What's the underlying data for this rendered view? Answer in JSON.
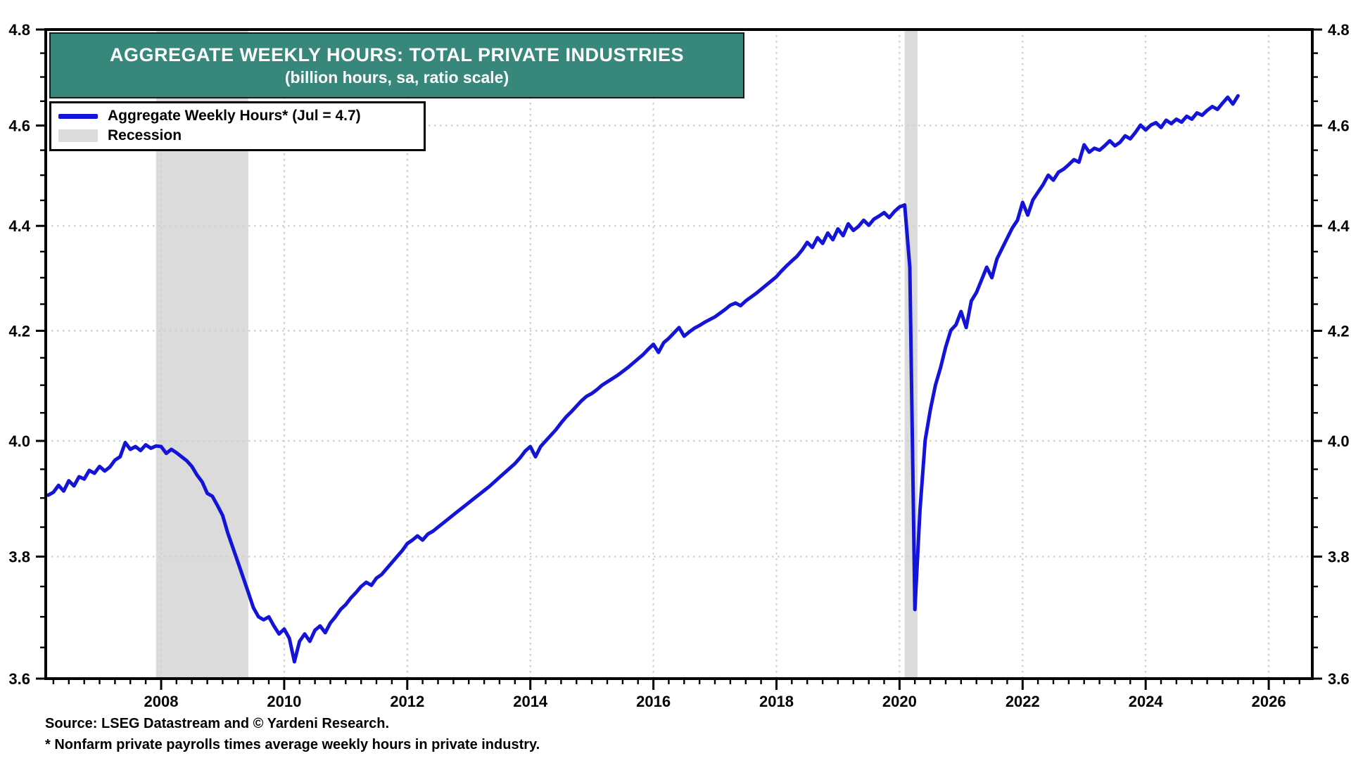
{
  "colors": {
    "line": "#1414d8",
    "recession": "#dbdbdb",
    "title_bg": "#38877b",
    "title_text": "#ffffff",
    "grid": "#cfcfcf",
    "axis": "#000000"
  },
  "chart_data": {
    "type": "line",
    "title": "AGGREGATE WEEKLY HOURS: TOTAL PRIVATE INDUSTRIES",
    "subtitle": "(billion hours, sa, ratio scale)",
    "legend": [
      {
        "label": "Aggregate Weekly Hours* (Jul = 4.7)",
        "swatch": "line",
        "color": "#1414d8"
      },
      {
        "label": "Recession",
        "swatch": "box",
        "color": "#dbdbdb"
      }
    ],
    "legend_position": "top-left",
    "grid": true,
    "y_axis": {
      "scale": "log-ratio",
      "min": 3.6,
      "max": 4.8,
      "major_ticks": [
        4.8,
        4.6,
        4.4,
        4.2,
        4.0,
        3.8,
        3.6
      ],
      "tick_labels": [
        "4.8",
        "4.6",
        "4.4",
        "4.2",
        "4.0",
        "3.8",
        "3.6"
      ],
      "minor_step": 0.05,
      "labels_both_sides": true
    },
    "x_axis": {
      "min": 2006.125,
      "max": 2026.708,
      "major_ticks": [
        2008,
        2010,
        2012,
        2014,
        2016,
        2018,
        2020,
        2022,
        2024,
        2026
      ],
      "minor_step_years": 0.25
    },
    "recessions": [
      {
        "start": 2007.917,
        "end": 2009.417
      },
      {
        "start": 2020.083,
        "end": 2020.292
      }
    ],
    "series": [
      {
        "name": "Aggregate Weekly Hours",
        "unit": "billion hours",
        "frequency": "monthly",
        "start_year": 2006,
        "start_month": 3,
        "last_point_label": "Jul = 4.7",
        "values": [
          3.905,
          3.91,
          3.922,
          3.912,
          3.93,
          3.921,
          3.937,
          3.933,
          3.948,
          3.943,
          3.955,
          3.947,
          3.954,
          3.966,
          3.972,
          3.997,
          3.985,
          3.99,
          3.983,
          3.993,
          3.987,
          3.991,
          3.99,
          3.978,
          3.985,
          3.979,
          3.972,
          3.965,
          3.955,
          3.94,
          3.928,
          3.908,
          3.903,
          3.887,
          3.87,
          3.84,
          3.815,
          3.79,
          3.765,
          3.74,
          3.715,
          3.7,
          3.695,
          3.7,
          3.685,
          3.672,
          3.68,
          3.665,
          3.627,
          3.66,
          3.672,
          3.66,
          3.678,
          3.685,
          3.674,
          3.69,
          3.7,
          3.712,
          3.72,
          3.731,
          3.74,
          3.75,
          3.757,
          3.752,
          3.764,
          3.77,
          3.78,
          3.79,
          3.8,
          3.81,
          3.822,
          3.828,
          3.835,
          3.828,
          3.838,
          3.843,
          3.85,
          3.857,
          3.864,
          3.871,
          3.878,
          3.885,
          3.892,
          3.899,
          3.906,
          3.913,
          3.92,
          3.928,
          3.936,
          3.944,
          3.952,
          3.96,
          3.97,
          3.982,
          3.99,
          3.972,
          3.99,
          4.0,
          4.01,
          4.02,
          4.032,
          4.043,
          4.052,
          4.062,
          4.072,
          4.08,
          4.085,
          4.092,
          4.1,
          4.106,
          4.112,
          4.118,
          4.125,
          4.132,
          4.14,
          4.148,
          4.156,
          4.166,
          4.175,
          4.16,
          4.178,
          4.186,
          4.196,
          4.206,
          4.19,
          4.198,
          4.205,
          4.21,
          4.216,
          4.221,
          4.226,
          4.233,
          4.24,
          4.248,
          4.252,
          4.247,
          4.256,
          4.263,
          4.27,
          4.278,
          4.286,
          4.294,
          4.302,
          4.313,
          4.323,
          4.332,
          4.341,
          4.353,
          4.368,
          4.358,
          4.377,
          4.366,
          4.386,
          4.373,
          4.394,
          4.381,
          4.404,
          4.391,
          4.399,
          4.411,
          4.401,
          4.413,
          4.419,
          4.426,
          4.416,
          4.428,
          4.437,
          4.441,
          4.32,
          3.712,
          3.88,
          4.001,
          4.055,
          4.1,
          4.132,
          4.17,
          4.201,
          4.211,
          4.236,
          4.206,
          4.256,
          4.272,
          4.296,
          4.32,
          4.3,
          4.336,
          4.356,
          4.376,
          4.396,
          4.411,
          4.446,
          4.421,
          4.451,
          4.466,
          4.481,
          4.5,
          4.49,
          4.506,
          4.512,
          4.521,
          4.531,
          4.526,
          4.561,
          4.546,
          4.554,
          4.55,
          4.559,
          4.569,
          4.559,
          4.566,
          4.579,
          4.573,
          4.586,
          4.601,
          4.591,
          4.601,
          4.606,
          4.596,
          4.611,
          4.604,
          4.613,
          4.607,
          4.619,
          4.613,
          4.626,
          4.621,
          4.631,
          4.639,
          4.633,
          4.646,
          4.658,
          4.644,
          4.661
        ]
      }
    ],
    "source_note": "Source: LSEG Datastream and © Yardeni Research.",
    "footnote": "* Nonfarm private payrolls times average weekly hours in private industry."
  }
}
